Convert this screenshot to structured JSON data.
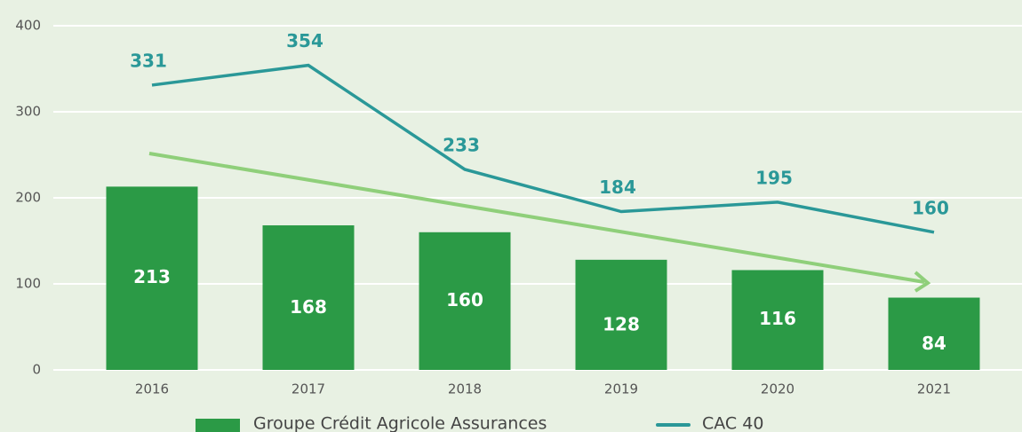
{
  "chart_data": {
    "type": "bar",
    "categories": [
      "2016",
      "2017",
      "2018",
      "2019",
      "2020",
      "2021"
    ],
    "series": [
      {
        "name": "Groupe Crédit Agricole Assurances",
        "type": "bar",
        "color": "#2b9a46",
        "values": [
          213,
          168,
          160,
          128,
          116,
          84
        ]
      },
      {
        "name": "CAC 40",
        "type": "line",
        "color": "#2a9898",
        "values": [
          331,
          354,
          233,
          184,
          195,
          160
        ]
      }
    ],
    "ylim": [
      0,
      400
    ],
    "yticks": [
      0,
      100,
      200,
      300,
      400
    ],
    "grid": true
  }
}
